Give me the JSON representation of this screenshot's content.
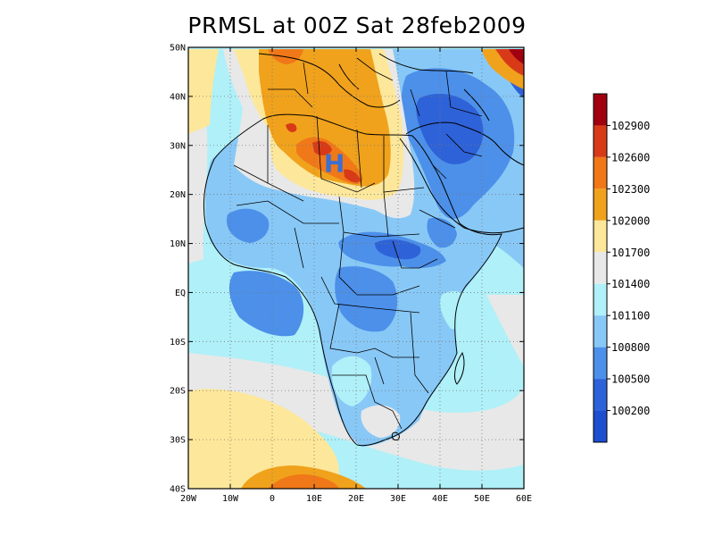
{
  "title": "PRMSL at 00Z Sat 28feb2009",
  "map": {
    "lat_ticks": [
      "50N",
      "40N",
      "30N",
      "20N",
      "10N",
      "EQ",
      "10S",
      "20S",
      "30S",
      "40S"
    ],
    "lon_ticks": [
      "20W",
      "10W",
      "0",
      "10E",
      "20E",
      "30E",
      "40E",
      "50E",
      "60E"
    ],
    "lat_range": [
      -40,
      50
    ],
    "lon_range": [
      -20,
      60
    ],
    "grid": "dotted",
    "high_marker": {
      "label": "H",
      "lon": 14.8,
      "lat": 26.4,
      "color": "#3c6fd0"
    }
  },
  "colorbar": {
    "labels": [
      "102900",
      "102600",
      "102300",
      "102000",
      "101700",
      "101400",
      "101100",
      "100800",
      "100500",
      "100200"
    ],
    "colors": [
      "#a0000f",
      "#d83a18",
      "#f07818",
      "#f0a21c",
      "#fde79a",
      "#e8e8e8",
      "#b0f0f8",
      "#88c8f6",
      "#4c90ea",
      "#2e62d8",
      "#1c4ed0"
    ]
  },
  "legend_colors": {
    "ocean_low": "#b0f0f8",
    "land_blue": "#88c8f6",
    "land_mid_blue": "#4c90ea",
    "deep_blue": "#2e62d8",
    "gray": "#e8e8e8",
    "yellow": "#fde79a",
    "orange": "#f0a21c",
    "dark_orange": "#f07818",
    "red": "#d83a18",
    "dark_red": "#a0000f"
  }
}
